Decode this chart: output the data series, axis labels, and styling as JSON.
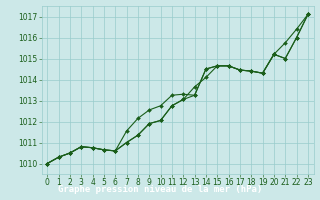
{
  "xlabel": "Graphe pression niveau de la mer (hPa)",
  "xlim": [
    -0.5,
    23.5
  ],
  "ylim": [
    1009.5,
    1017.5
  ],
  "yticks": [
    1010,
    1011,
    1012,
    1013,
    1014,
    1015,
    1016,
    1017
  ],
  "xticks": [
    0,
    1,
    2,
    3,
    4,
    5,
    6,
    7,
    8,
    9,
    10,
    11,
    12,
    13,
    14,
    15,
    16,
    17,
    18,
    19,
    20,
    21,
    22,
    23
  ],
  "background_color": "#cce8e8",
  "grid_color": "#99cccc",
  "line_color": "#1a5e1a",
  "series1": [
    1010.0,
    1010.3,
    1010.5,
    1010.8,
    1010.75,
    1010.65,
    1010.6,
    1011.0,
    1011.35,
    1011.9,
    1012.05,
    1012.75,
    1013.05,
    1013.25,
    1014.5,
    1014.65,
    1014.65,
    1014.45,
    1014.4,
    1014.3,
    1015.2,
    1015.0,
    1016.0,
    1017.1
  ],
  "series2": [
    1010.0,
    1010.3,
    1010.5,
    1010.8,
    1010.75,
    1010.65,
    1010.6,
    1011.0,
    1011.35,
    1011.9,
    1012.05,
    1012.75,
    1013.05,
    1013.65,
    1014.1,
    1014.65,
    1014.65,
    1014.45,
    1014.4,
    1014.3,
    1015.2,
    1015.0,
    1016.0,
    1017.1
  ],
  "series3": [
    1010.0,
    1010.3,
    1010.5,
    1010.8,
    1010.75,
    1010.65,
    1010.6,
    1011.55,
    1012.15,
    1012.55,
    1012.75,
    1013.25,
    1013.3,
    1013.25,
    1014.5,
    1014.65,
    1014.65,
    1014.45,
    1014.4,
    1014.3,
    1015.2,
    1015.75,
    1016.4,
    1017.1
  ],
  "marker": "D",
  "markersize": 2.0,
  "linewidth": 0.8,
  "tick_fontsize": 5.5,
  "xlabel_fontsize": 6.5,
  "bottom_bg_color": "#2d6a2d"
}
